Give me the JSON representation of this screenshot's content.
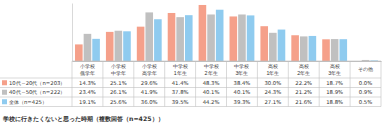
{
  "chart_data": {
    "type": "bar",
    "title": "学校に行きたくないと思った時期（複数回答（n=425））",
    "categories": [
      "小学校低学年",
      "小学校中学年",
      "小学校高学年",
      "中学校1年生",
      "中学校2年生",
      "中学校3年生",
      "高校1年生",
      "高校2年生",
      "高校3年生",
      "その他"
    ],
    "series": [
      {
        "name": "10代～20代（n=203）",
        "color": "#f5a08a",
        "values": [
          14.3,
          25.1,
          29.6,
          41.4,
          48.3,
          38.4,
          30.0,
          22.2,
          18.7,
          0.0
        ],
        "value_labels": [
          "14.3%",
          "25.1%",
          "29.6%",
          "41.4%",
          "48.3%",
          "38.4%",
          "30.0%",
          "22.2%",
          "18.7%",
          "0.0%"
        ]
      },
      {
        "name": "40代～50代（n=222）",
        "color": "#c0c0c0",
        "values": [
          23.4,
          26.1,
          41.9,
          37.8,
          40.1,
          40.1,
          24.3,
          21.2,
          18.9,
          0.9
        ],
        "value_labels": [
          "23.4%",
          "26.1%",
          "41.9%",
          "37.8%",
          "40.1%",
          "40.1%",
          "24.3%",
          "21.2%",
          "18.9%",
          "0.9%"
        ]
      },
      {
        "name": "全体（n=425）",
        "color": "#8fcbef",
        "values": [
          19.1,
          25.6,
          36.0,
          39.5,
          44.2,
          39.3,
          27.1,
          21.6,
          18.8,
          0.5
        ],
        "value_labels": [
          "19.1%",
          "25.6%",
          "36.0%",
          "39.5%",
          "44.2%",
          "39.3%",
          "27.1%",
          "21.6%",
          "18.8%",
          "0.5%"
        ]
      }
    ],
    "ylim": [
      0,
      50
    ],
    "data_labels": true,
    "tick_labels": "x"
  }
}
